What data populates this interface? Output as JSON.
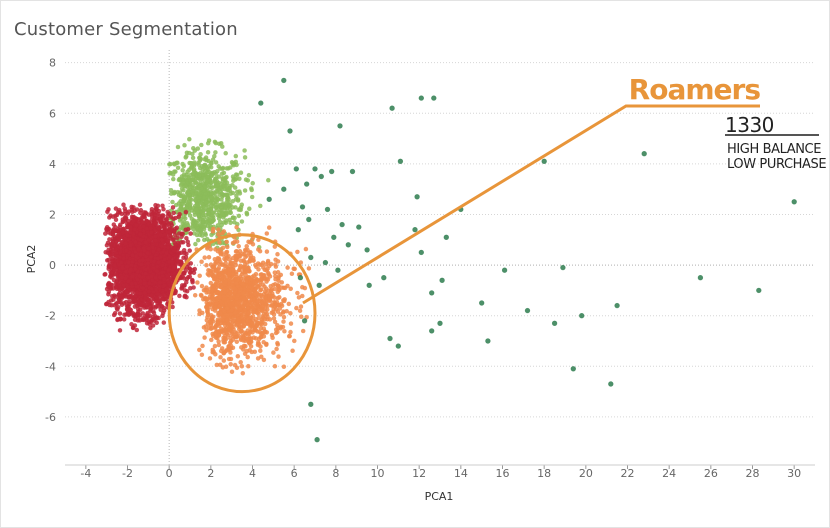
{
  "chart_data": {
    "type": "scatter",
    "title": "Customer Segmentation",
    "xlabel": "PCA1",
    "ylabel": "PCA2",
    "xlim": [
      -5,
      31
    ],
    "ylim": [
      -7.9,
      8.5
    ],
    "x_ticks": [
      -4,
      -2,
      0,
      2,
      4,
      6,
      8,
      10,
      12,
      14,
      16,
      18,
      20,
      22,
      24,
      26,
      28,
      30
    ],
    "y_ticks": [
      -6,
      -4,
      -2,
      0,
      2,
      4,
      6,
      8
    ],
    "grid": true,
    "legend": "none",
    "series": [
      {
        "color": "#c0273a",
        "cluster": {
          "approx_count": 3000,
          "x_range": [
            -3,
            1
          ],
          "y_range": [
            -2.5,
            2.5
          ]
        }
      },
      {
        "color": "#8cbd5a",
        "cluster": {
          "approx_count": 800,
          "x_range": [
            0,
            6
          ],
          "y_range": [
            0.5,
            5.5
          ]
        }
      },
      {
        "color": "#f08a4b",
        "cluster": {
          "approx_count": 1330,
          "x_range": [
            0,
            7
          ],
          "y_range": [
            -4.7,
            1.5
          ]
        }
      },
      {
        "color": "#2e7d4f",
        "points": [
          [
            5.5,
            7.3
          ],
          [
            4.4,
            6.4
          ],
          [
            10.7,
            6.2
          ],
          [
            12.1,
            6.6
          ],
          [
            12.7,
            6.6
          ],
          [
            8.2,
            5.5
          ],
          [
            5.8,
            5.3
          ],
          [
            11.1,
            4.1
          ],
          [
            6.1,
            3.8
          ],
          [
            7.0,
            3.8
          ],
          [
            7.8,
            3.7
          ],
          [
            8.8,
            3.7
          ],
          [
            6.6,
            3.2
          ],
          [
            7.3,
            3.5
          ],
          [
            5.5,
            3.0
          ],
          [
            4.8,
            2.6
          ],
          [
            6.4,
            2.3
          ],
          [
            7.6,
            2.2
          ],
          [
            6.7,
            1.8
          ],
          [
            8.3,
            1.6
          ],
          [
            9.1,
            1.5
          ],
          [
            6.2,
            1.4
          ],
          [
            7.9,
            1.1
          ],
          [
            8.6,
            0.8
          ],
          [
            9.5,
            0.6
          ],
          [
            6.8,
            0.3
          ],
          [
            7.5,
            0.1
          ],
          [
            8.1,
            -0.2
          ],
          [
            6.3,
            -0.5
          ],
          [
            7.2,
            -0.8
          ],
          [
            9.6,
            -0.8
          ],
          [
            10.3,
            -0.5
          ],
          [
            11.9,
            2.7
          ],
          [
            11.8,
            1.4
          ],
          [
            12.1,
            0.5
          ],
          [
            13.3,
            1.1
          ],
          [
            14.0,
            2.2
          ],
          [
            12.6,
            -1.1
          ],
          [
            13.1,
            -0.6
          ],
          [
            15.0,
            -1.5
          ],
          [
            16.1,
            -0.2
          ],
          [
            17.2,
            -1.8
          ],
          [
            18.9,
            -0.1
          ],
          [
            18.0,
            4.1
          ],
          [
            22.8,
            4.4
          ],
          [
            13.0,
            -2.3
          ],
          [
            12.6,
            -2.6
          ],
          [
            10.6,
            -2.9
          ],
          [
            11.0,
            -3.2
          ],
          [
            15.3,
            -3.0
          ],
          [
            18.5,
            -2.3
          ],
          [
            19.8,
            -2.0
          ],
          [
            21.5,
            -1.6
          ],
          [
            19.4,
            -4.1
          ],
          [
            21.2,
            -4.7
          ],
          [
            25.5,
            -0.5
          ],
          [
            28.3,
            -1.0
          ],
          [
            30.0,
            2.5
          ],
          [
            6.8,
            -5.5
          ],
          [
            7.1,
            -6.9
          ],
          [
            6.5,
            -2.2
          ]
        ]
      }
    ],
    "annotation": {
      "title": "Roamers",
      "count": "1330",
      "line1": "HIGH BALANCE",
      "line2": "LOW PURCHASE",
      "color": "#e8953a",
      "ellipse_center": [
        3.5,
        -1.9
      ],
      "ellipse_radius": [
        3.5,
        3.1
      ]
    }
  }
}
